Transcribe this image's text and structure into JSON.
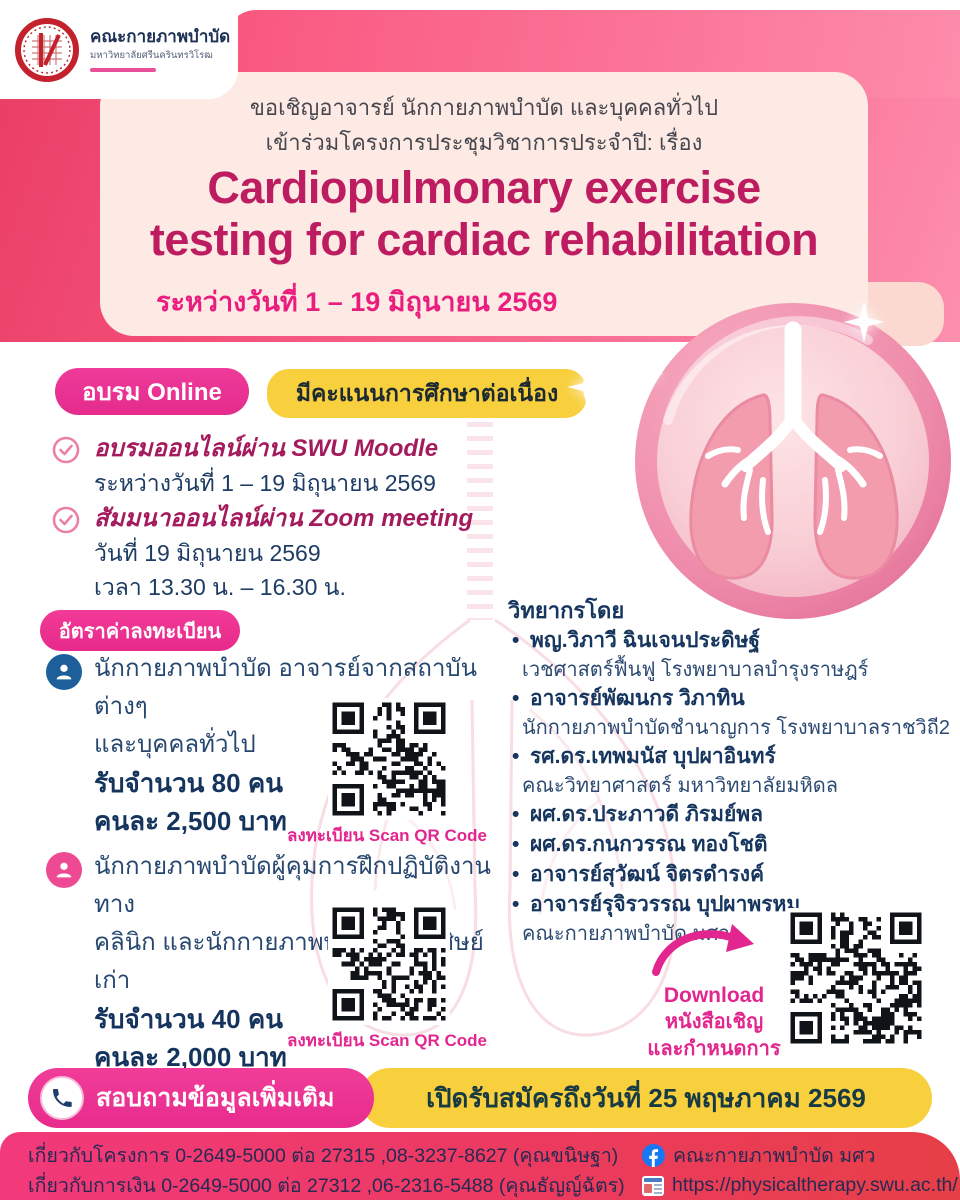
{
  "logo": {
    "org": "คณะกายภาพบำบัด",
    "university": "มหาวิทยาลัยศรีนครินทรวิโรฒ"
  },
  "hero": {
    "invite_line1": "ขอเชิญอาจารย์ นักกายภาพบำบัด และบุคคลทั่วไป",
    "invite_line2": "เข้าร่วมโครงการประชุมวิชาการประจำปี: เรื่อง",
    "title_line1": "Cardiopulmonary exercise",
    "title_line2": "testing for cardiac rehabilitation",
    "date_range": "ระหว่างวันที่  1 – 19 มิถุนายน 2569"
  },
  "badges": {
    "online": "อบรม Online",
    "cpe": "มีคะแนนการศึกษาต่อเนื่อง"
  },
  "schedule": [
    {
      "title": "อบรมออนไลน์ผ่าน SWU Moodle",
      "line1": "ระหว่างวันที่ 1 – 19 มิถุนายน 2569"
    },
    {
      "title": "สัมมนาออนไลน์ผ่าน Zoom meeting",
      "line1": "วันที่ 19 มิถุนายน 2569",
      "line2": "เวลา 13.30 น. – 16.30 น."
    }
  ],
  "registration": {
    "header": "อัตราค่าลงทะเบียน",
    "items": [
      {
        "desc1": "นักกายภาพบำบัด อาจารย์จากสถาบันต่างๆ",
        "desc2": "และบุคคลทั่วไป",
        "capacity": "รับจำนวน 80 คน",
        "fee": "คนละ 2,500 บาท",
        "qr_caption": "ลงทะเบียน Scan QR Code"
      },
      {
        "desc1": "นักกายภาพบำบัดผู้คุมการฝึกปฏิบัติงานทาง",
        "desc2": "คลินิก และนักกายภาพบำบัดที่เป็นศิษย์เก่า",
        "capacity": "รับจำนวน 40 คน",
        "fee": "คนละ 2,000 บาท",
        "qr_caption": "ลงทะเบียน Scan QR Code"
      }
    ]
  },
  "speakers": {
    "header": "วิทยากรโดย",
    "list": [
      {
        "name": "พญ.วิภาวี ฉินเจนประดิษฐ์",
        "affiliation": "เวชศาสตร์ฟื้นฟู โรงพยาบาลบำรุงราษฎร์"
      },
      {
        "name": "อาจารย์พัฒนกร วิภาทิน",
        "affiliation": "นักกายภาพบำบัดชำนาญการ โรงพยาบาลราชวิถี2"
      },
      {
        "name": "รศ.ดร.เทพมนัส บุปผาอินทร์",
        "affiliation": "คณะวิทยาศาสตร์ มหาวิทยาลัยมหิดล"
      },
      {
        "name": "ผศ.ดร.ประภาวดี ภิรมย์พล",
        "affiliation": ""
      },
      {
        "name": "ผศ.ดร.กนกวรรณ ทองโชติ",
        "affiliation": ""
      },
      {
        "name": "อาจารย์สุวัฒน์ จิตรดำรงค์",
        "affiliation": ""
      },
      {
        "name": "อาจารย์รุจิรวรรณ บุปผาพรหม",
        "affiliation": ""
      }
    ],
    "tail": "คณะกายภาพบำบัด มศว"
  },
  "download": {
    "line1": "Download",
    "line2": "หนังสือเชิญ",
    "line3": "และกำหนดการ"
  },
  "bottom": {
    "contact": "สอบถามข้อมูลเพิ่มเติม",
    "deadline": "เปิดรับสมัครถึงวันที่  25 พฤษภาคม 2569"
  },
  "footer": {
    "line1": "เกี่ยวกับโครงการ 0-2649-5000 ต่อ 27315 ,08-3237-8627 (คุณขนิษฐา)",
    "line2": "เกี่ยวกับการเงิน 0-2649-5000 ต่อ 27312 ,06-2316-5488 (คุณธัญญ์ฉัตร)",
    "facebook": "คณะกายภาพบำบัด มศว",
    "website": "https://physicaltherapy.swu.ac.th/"
  },
  "colors": {
    "accent_pink": "#E93297",
    "title_crimson": "#BD1D60",
    "badge_yellow": "#F8CF3D",
    "navy": "#16365F",
    "footer_gradient_left": "#F2397B",
    "footer_gradient_right": "#E73F47"
  }
}
